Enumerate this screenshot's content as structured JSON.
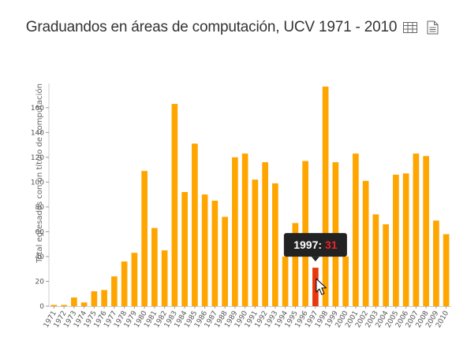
{
  "header": {
    "title": "Graduandos en áreas de computación, UCV 1971 - 2010",
    "table_icon": "table-icon",
    "document_icon": "document-icon"
  },
  "chart_data": {
    "type": "bar",
    "title": "Graduandos en áreas de computación, UCV 1971 - 2010",
    "xlabel": "",
    "ylabel": "Total egresados con un título de computación",
    "categories": [
      "1971",
      "1972",
      "1973",
      "1974",
      "1975",
      "1976",
      "1977",
      "1978",
      "1979",
      "1980",
      "1981",
      "1982",
      "1983",
      "1984",
      "1985",
      "1986",
      "1987",
      "1988",
      "1989",
      "1990",
      "1991",
      "1992",
      "1993",
      "1994",
      "1995",
      "1996",
      "1997",
      "1998",
      "1999",
      "2000",
      "2001",
      "2002",
      "2003",
      "2004",
      "2005",
      "2006",
      "2007",
      "2008",
      "2009",
      "2010"
    ],
    "values": [
      1,
      1,
      7,
      3,
      12,
      13,
      24,
      36,
      43,
      109,
      63,
      45,
      163,
      92,
      131,
      90,
      85,
      72,
      120,
      123,
      102,
      116,
      99,
      40,
      67,
      117,
      31,
      177,
      116,
      40,
      123,
      101,
      74,
      66,
      106,
      107,
      123,
      121,
      69,
      58
    ],
    "ylim": [
      0,
      177
    ],
    "yticks": [
      0,
      20,
      40,
      60,
      80,
      100,
      120,
      140,
      160
    ],
    "grid": false,
    "legend": "none",
    "highlight": {
      "category": "1997",
      "label": "1997",
      "value": "31"
    },
    "colors": {
      "bar": "#FFA500",
      "highlight": "#E8380D",
      "tooltip_bg": "#222222",
      "tooltip_value": "#E8242A"
    }
  }
}
